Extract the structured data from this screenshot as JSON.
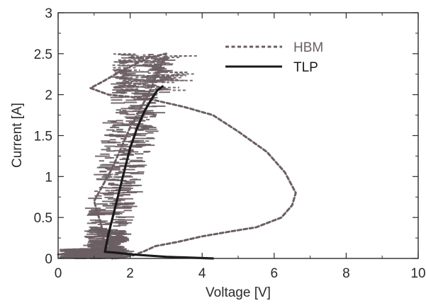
{
  "chart_data": {
    "type": "line",
    "xlabel": "Voltage [V]",
    "ylabel": "Current [A]",
    "xlim": [
      0,
      10
    ],
    "ylim": [
      0,
      3
    ],
    "xticks": [
      0,
      2,
      4,
      6,
      8,
      10
    ],
    "yticks": [
      0,
      0.5,
      1,
      1.5,
      2,
      2.5,
      3
    ],
    "xtick_labels": [
      "0",
      "2",
      "4",
      "6",
      "8",
      "10"
    ],
    "ytick_labels": [
      "0",
      "0.5",
      "1",
      "1.5",
      "2",
      "2.5",
      "3"
    ],
    "grid": false,
    "legend_position": "top-right",
    "series": [
      {
        "name": "HBM",
        "style": "dashed",
        "color": "#6b5f63",
        "x": [
          0.0,
          0.5,
          1.0,
          1.3,
          1.2,
          1.0,
          1.5,
          2.0,
          2.5,
          3.0,
          2.5,
          1.8,
          1.2,
          0.9,
          1.4,
          2.5,
          3.5,
          4.3,
          5.0,
          5.8,
          6.3,
          6.6,
          6.5,
          6.2,
          5.5,
          4.8,
          4.0,
          3.3,
          2.7,
          2.4,
          2.1,
          1.8,
          1.5
        ],
        "y": [
          0.05,
          0.05,
          0.06,
          0.15,
          0.4,
          0.7,
          1.1,
          1.6,
          2.0,
          2.5,
          2.45,
          2.3,
          2.15,
          2.08,
          2.0,
          1.95,
          1.85,
          1.75,
          1.55,
          1.3,
          1.05,
          0.8,
          0.65,
          0.5,
          0.38,
          0.33,
          0.27,
          0.2,
          0.15,
          0.09,
          0.04,
          0.01,
          0.0
        ]
      },
      {
        "name": "TLP",
        "style": "solid",
        "color": "#1a1a1a",
        "x": [
          4.3,
          3.0,
          2.0,
          1.6,
          1.3,
          1.4,
          1.6,
          1.8,
          2.0,
          2.2,
          2.4,
          2.6,
          2.75,
          2.9
        ],
        "y": [
          0.0,
          0.02,
          0.05,
          0.07,
          0.08,
          0.3,
          0.65,
          1.0,
          1.35,
          1.6,
          1.8,
          1.95,
          2.05,
          2.1
        ]
      }
    ]
  }
}
